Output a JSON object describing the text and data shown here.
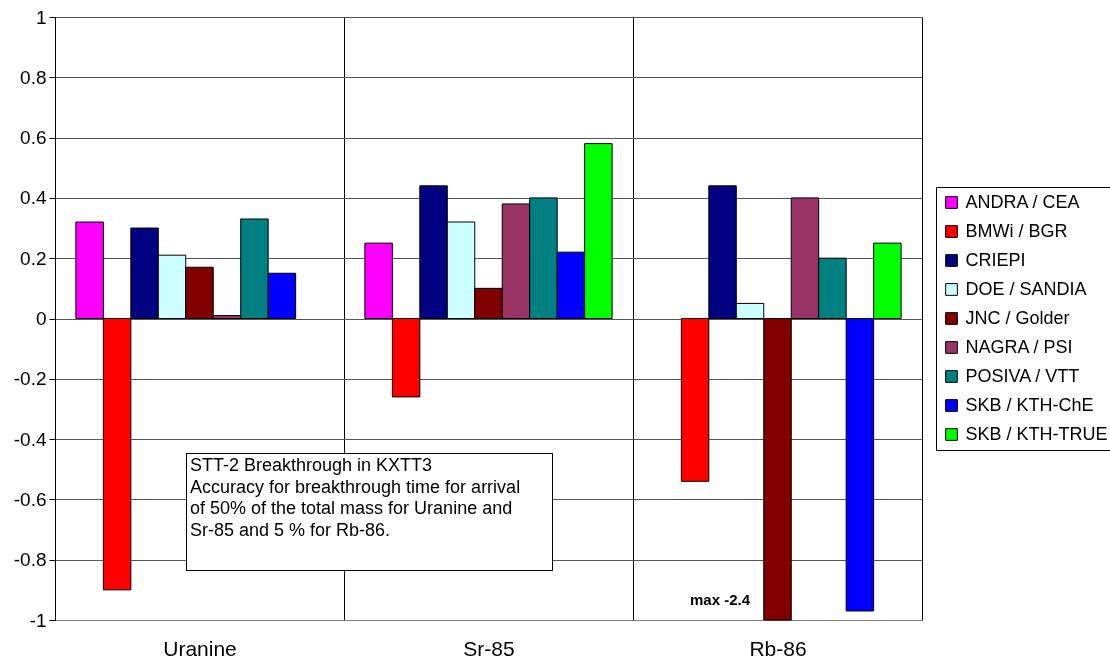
{
  "chart_data": {
    "type": "bar",
    "categories": [
      "Uranine",
      "Sr-85",
      "Rb-86"
    ],
    "series": [
      {
        "name": "ANDRA / CEA",
        "color": "#ff00ff",
        "values": [
          0.32,
          0.25,
          null
        ]
      },
      {
        "name": "BMWi / BGR",
        "color": "#ff0000",
        "values": [
          -0.9,
          -0.26,
          -0.54
        ]
      },
      {
        "name": "CRIEPI",
        "color": "#000080",
        "values": [
          0.3,
          0.44,
          0.44
        ]
      },
      {
        "name": "DOE / SANDIA",
        "color": "#ccffff",
        "values": [
          0.21,
          0.32,
          0.05
        ]
      },
      {
        "name": "JNC / Golder",
        "color": "#800000",
        "values": [
          0.17,
          0.1,
          -1
        ]
      },
      {
        "name": "NAGRA / PSI",
        "color": "#993366",
        "values": [
          0.01,
          0.38,
          0.4
        ]
      },
      {
        "name": "POSIVA / VTT",
        "color": "#008080",
        "values": [
          0.33,
          0.4,
          0.2
        ]
      },
      {
        "name": "SKB / KTH-ChE",
        "color": "#0000ff",
        "values": [
          0.15,
          0.22,
          -0.97
        ]
      },
      {
        "name": "SKB / KTH-TRUE",
        "color": "#00ff00",
        "values": [
          null,
          0.58,
          0.25
        ]
      }
    ],
    "ylim": [
      -1,
      1
    ],
    "yticks": [
      -1,
      -0.8,
      -0.6,
      -0.4,
      -0.2,
      0,
      0.2,
      0.4,
      0.6,
      0.8,
      1
    ],
    "grid": true,
    "legend": "right",
    "annotations": [
      "STT-2 Breakthrough in KXTT3\nAccuracy for breakthrough time for arrival\nof 50% of the total mass for Uranine and\nSr-85 and 5 % for Rb-86.",
      {
        "text": "max -2.4",
        "x": "Rb-86",
        "y": -1
      }
    ]
  }
}
